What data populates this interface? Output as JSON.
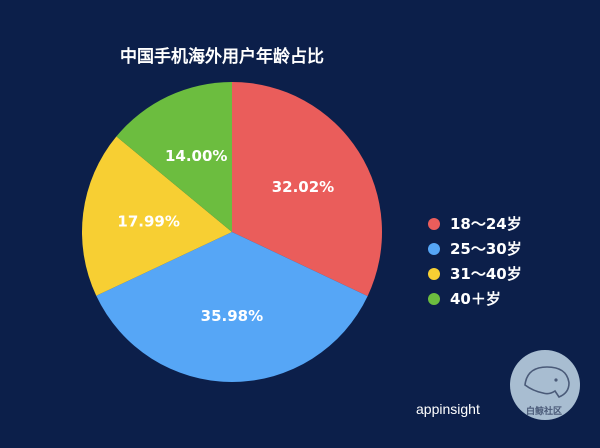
{
  "chart_data": {
    "type": "pie",
    "title": "中国手机海外用户年龄占比",
    "categories": [
      "18～24岁",
      "25～30岁",
      "31～40岁",
      "40＋岁"
    ],
    "values": [
      32.02,
      35.98,
      17.99,
      14.0
    ],
    "value_labels": [
      "32.02%",
      "35.98%",
      "17.99%",
      "14.00%"
    ],
    "colors": [
      "#ea5d5b",
      "#56a6f6",
      "#f7cf33",
      "#6cbd3f"
    ],
    "legend_position": "right",
    "start_angle_deg": 0,
    "direction": "clockwise"
  },
  "brand": "appinsight",
  "watermark": {
    "text": "白鲸社区",
    "icon": "whale-icon"
  },
  "background_color": "#0c1f4a"
}
